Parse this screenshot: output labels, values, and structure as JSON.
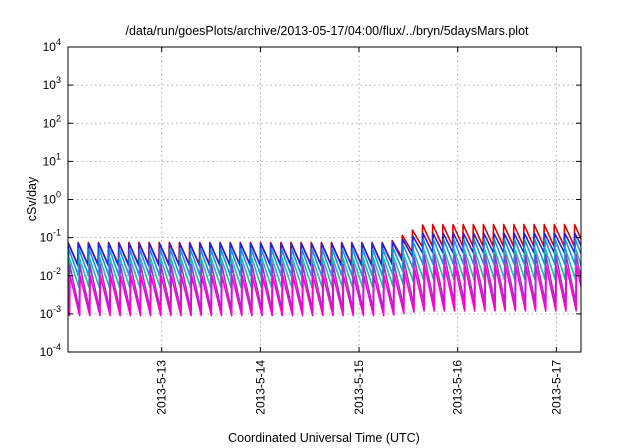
{
  "chart_data": {
    "type": "line",
    "title": "/data/run/goesPlots/archive/2013-05-17/04:00/flux/../bryn/5daysMars.plot",
    "xlabel": "Coordinated Universal Time (UTC)",
    "ylabel": "cSv/day",
    "yscale": "log",
    "ylim": [
      0.0001,
      10000
    ],
    "xlim_days": [
      12.05,
      17.25
    ],
    "x_ticks": [
      {
        "label": "2013-5-13",
        "day": 13
      },
      {
        "label": "2013-5-14",
        "day": 14
      },
      {
        "label": "2013-5-15",
        "day": 15
      },
      {
        "label": "2013-5-16",
        "day": 16
      },
      {
        "label": "2013-5-17",
        "day": 17
      }
    ],
    "y_ticks": [
      {
        "mant": "10",
        "exp": "-4",
        "value": 0.0001
      },
      {
        "mant": "10",
        "exp": "-3",
        "value": 0.001
      },
      {
        "mant": "10",
        "exp": "-2",
        "value": 0.01
      },
      {
        "mant": "10",
        "exp": "-1",
        "value": 0.1
      },
      {
        "mant": "10",
        "exp": "0",
        "value": 1
      },
      {
        "mant": "10",
        "exp": "1",
        "value": 10
      },
      {
        "mant": "10",
        "exp": "2",
        "value": 100
      },
      {
        "mant": "10",
        "exp": "3",
        "value": 1000
      },
      {
        "mant": "10",
        "exp": "4",
        "value": 10000
      }
    ],
    "grid": true,
    "legend": "none",
    "sawtooth_period_days": 0.1027,
    "series": [
      {
        "color": "#dd0000",
        "peak_early": 0.075,
        "peak_late": 0.22,
        "trough_early": 0.02,
        "trough_late": 0.06
      },
      {
        "color": "#2222dd",
        "peak_early": 0.07,
        "peak_late": 0.13,
        "trough_early": 0.018,
        "trough_late": 0.04
      },
      {
        "color": "#1e8fe0",
        "peak_early": 0.05,
        "peak_late": 0.09,
        "trough_early": 0.01,
        "trough_late": 0.02
      },
      {
        "color": "#20b8b0",
        "peak_early": 0.03,
        "peak_late": 0.05,
        "trough_early": 0.005,
        "trough_late": 0.008
      },
      {
        "color": "#9933cc",
        "peak_early": 0.02,
        "peak_late": 0.035,
        "trough_early": 0.0013,
        "trough_late": 0.002
      },
      {
        "color": "#ff00cc",
        "peak_early": 0.01,
        "peak_late": 0.018,
        "trough_early": 0.0009,
        "trough_late": 0.0012
      }
    ]
  }
}
